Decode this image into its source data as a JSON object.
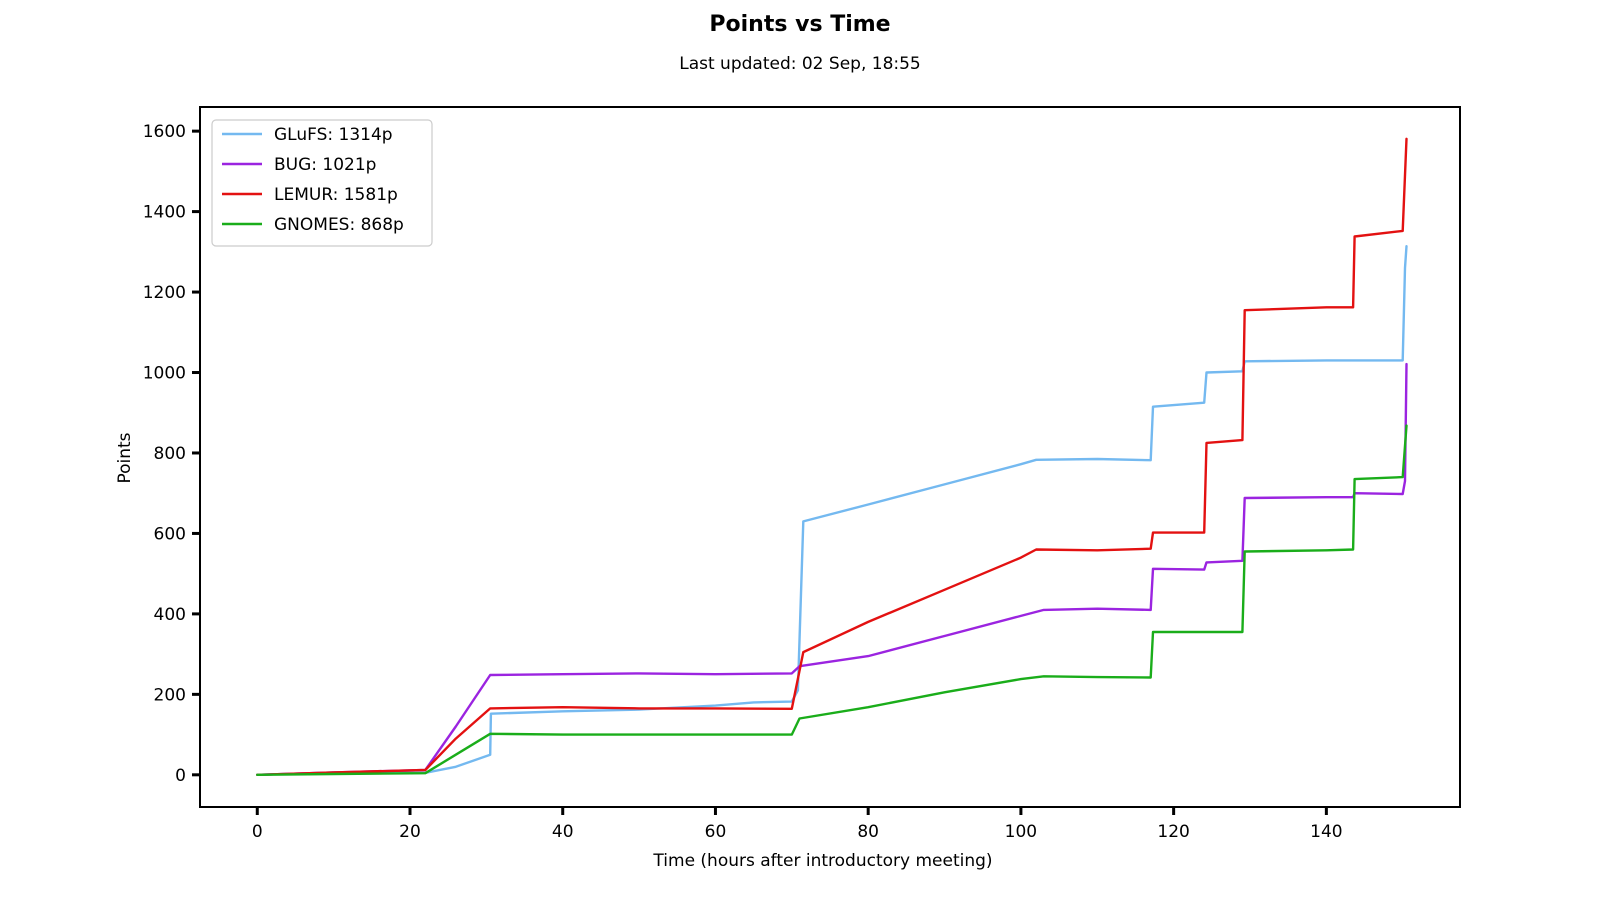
{
  "chart_data": {
    "type": "line",
    "title": "Points vs Time",
    "subtitle": "Last updated: 02 Sep, 18:55",
    "xlabel": "Time (hours after introductory meeting)",
    "ylabel": "Points",
    "xlim": [
      -7.5,
      157.5
    ],
    "ylim": [
      -80,
      1660
    ],
    "xticks": [
      0,
      20,
      40,
      60,
      80,
      100,
      120,
      140
    ],
    "yticks": [
      0,
      200,
      400,
      600,
      800,
      1000,
      1200,
      1400,
      1600
    ],
    "grid": false,
    "legend_position": "top-left",
    "series": [
      {
        "name": "GLuFS: 1314p",
        "color": "#74b9f0",
        "points": [
          [
            0,
            0
          ],
          [
            10,
            6
          ],
          [
            22,
            5
          ],
          [
            26,
            20
          ],
          [
            30.5,
            50
          ],
          [
            30.6,
            152
          ],
          [
            40,
            158
          ],
          [
            50,
            162
          ],
          [
            60,
            172
          ],
          [
            65,
            180
          ],
          [
            70,
            182
          ],
          [
            70.8,
            210
          ],
          [
            71.5,
            630
          ],
          [
            80,
            672
          ],
          [
            90,
            722
          ],
          [
            100,
            772
          ],
          [
            102,
            783
          ],
          [
            110,
            785
          ],
          [
            117,
            782
          ],
          [
            117.3,
            915
          ],
          [
            124,
            925
          ],
          [
            124.3,
            1000
          ],
          [
            129,
            1003
          ],
          [
            129.3,
            1028
          ],
          [
            140,
            1030
          ],
          [
            150,
            1030
          ],
          [
            150.3,
            1260
          ],
          [
            150.5,
            1314
          ]
        ]
      },
      {
        "name": "BUG: 1021p",
        "color": "#9b24e0",
        "points": [
          [
            0,
            0
          ],
          [
            10,
            6
          ],
          [
            22,
            12
          ],
          [
            26,
            120
          ],
          [
            30.5,
            248
          ],
          [
            40,
            250
          ],
          [
            50,
            252
          ],
          [
            60,
            250
          ],
          [
            70,
            252
          ],
          [
            71,
            270
          ],
          [
            80,
            295
          ],
          [
            90,
            345
          ],
          [
            100,
            395
          ],
          [
            103,
            410
          ],
          [
            110,
            413
          ],
          [
            117,
            410
          ],
          [
            117.3,
            512
          ],
          [
            124,
            510
          ],
          [
            124.3,
            528
          ],
          [
            129,
            532
          ],
          [
            129.3,
            688
          ],
          [
            140,
            690
          ],
          [
            143.5,
            690
          ],
          [
            143.7,
            700
          ],
          [
            150,
            698
          ],
          [
            150.3,
            730
          ],
          [
            150.5,
            1021
          ]
        ]
      },
      {
        "name": "LEMUR: 1581p",
        "color": "#e31111",
        "points": [
          [
            0,
            0
          ],
          [
            10,
            6
          ],
          [
            22,
            12
          ],
          [
            26,
            90
          ],
          [
            30.5,
            165
          ],
          [
            40,
            168
          ],
          [
            50,
            165
          ],
          [
            60,
            165
          ],
          [
            70,
            164
          ],
          [
            71.5,
            305
          ],
          [
            80,
            380
          ],
          [
            90,
            460
          ],
          [
            100,
            540
          ],
          [
            102,
            560
          ],
          [
            110,
            558
          ],
          [
            117,
            562
          ],
          [
            117.3,
            602
          ],
          [
            124,
            602
          ],
          [
            124.3,
            825
          ],
          [
            129,
            832
          ],
          [
            129.3,
            1155
          ],
          [
            140,
            1162
          ],
          [
            143.5,
            1162
          ],
          [
            143.7,
            1338
          ],
          [
            150,
            1352
          ],
          [
            150.5,
            1581
          ]
        ]
      },
      {
        "name": "GNOMES: 868p",
        "color": "#1aad1a",
        "points": [
          [
            0,
            0
          ],
          [
            10,
            2
          ],
          [
            22,
            4
          ],
          [
            26,
            50
          ],
          [
            30.5,
            102
          ],
          [
            40,
            100
          ],
          [
            50,
            100
          ],
          [
            60,
            100
          ],
          [
            70,
            100
          ],
          [
            71,
            140
          ],
          [
            80,
            168
          ],
          [
            90,
            205
          ],
          [
            100,
            238
          ],
          [
            103,
            245
          ],
          [
            110,
            243
          ],
          [
            117,
            242
          ],
          [
            117.3,
            355
          ],
          [
            124,
            355
          ],
          [
            129,
            355
          ],
          [
            129.3,
            555
          ],
          [
            140,
            558
          ],
          [
            143.5,
            560
          ],
          [
            143.7,
            735
          ],
          [
            150,
            740
          ],
          [
            150.5,
            868
          ]
        ]
      }
    ]
  }
}
